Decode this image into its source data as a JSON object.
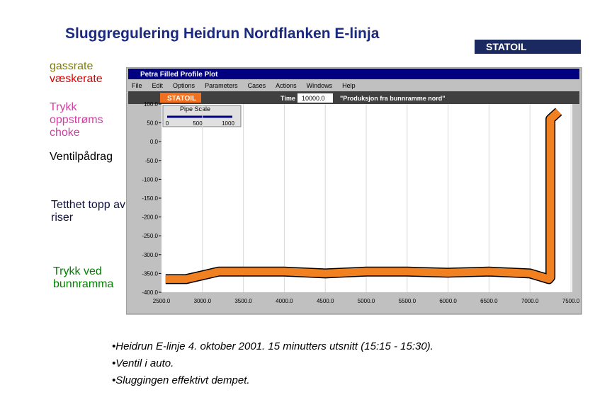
{
  "header": {
    "title": "Sluggregulering Heidrun Nordflanken E-linja",
    "logo": "STATOIL"
  },
  "legend": [
    {
      "label": "gassrate",
      "color": "#808000"
    },
    {
      "label": "væskerate",
      "color": "#e00000"
    },
    {
      "label": "Trykk oppstrøms choke",
      "color": "#d040a0"
    },
    {
      "label": "Ventilpådrag",
      "color": "#000000"
    },
    {
      "label": "Tetthet topp av riser",
      "color": "#101040"
    },
    {
      "label": "Trykk ved bunnramma",
      "color": "#008000"
    }
  ],
  "window": {
    "title": "Petra Filled Profile Plot",
    "menu": [
      "File",
      "Edit",
      "Options",
      "Parameters",
      "Cases",
      "Actions",
      "Windows",
      "Help"
    ],
    "toolbar": {
      "logo": "STATOIL",
      "time_label": "Time",
      "time_value": "10000.0",
      "case": "\"Produksjon fra bunnramme nord\""
    },
    "slider": {
      "label": "Pipe Scale",
      "ticks": [
        "0",
        "500",
        "1000"
      ]
    },
    "plot": {
      "xlim": [
        2500,
        7500
      ],
      "ylim": [
        -400,
        100
      ],
      "xticks": [
        {
          "value": 2500,
          "label": "2500.0"
        },
        {
          "value": 3000,
          "label": "3000.0"
        },
        {
          "value": 3500,
          "label": "3500.0"
        },
        {
          "value": 4000,
          "label": "4000.0"
        },
        {
          "value": 4500,
          "label": "4500.0"
        },
        {
          "value": 5000,
          "label": "5000.0"
        },
        {
          "value": 5500,
          "label": "5500.0"
        },
        {
          "value": 6000,
          "label": "6000.0"
        },
        {
          "value": 6500,
          "label": "6500.0"
        },
        {
          "value": 7000,
          "label": "7000.0"
        },
        {
          "value": 7500,
          "label": "7500.0"
        }
      ],
      "yticks": [
        {
          "value": 100,
          "label": "100.0"
        },
        {
          "value": 50,
          "label": "50.0"
        },
        {
          "value": 0,
          "label": "0.0"
        },
        {
          "value": -50,
          "label": "-50.0"
        },
        {
          "value": -100,
          "label": "-100.0"
        },
        {
          "value": -150,
          "label": "-150.0"
        },
        {
          "value": -200,
          "label": "-200.0"
        },
        {
          "value": -250,
          "label": "-250.0"
        },
        {
          "value": -300,
          "label": "-300.0"
        },
        {
          "value": -350,
          "label": "-350.0"
        },
        {
          "value": -400,
          "label": "-400.0"
        }
      ],
      "profile": {
        "color": "#f08020",
        "x": [
          2550,
          2800,
          3000,
          3200,
          3500,
          4000,
          4500,
          5000,
          5500,
          6000,
          6500,
          7000,
          7230,
          7250,
          7250,
          7350
        ],
        "y": [
          -365,
          -365,
          -355,
          -345,
          -345,
          -345,
          -350,
          -345,
          -345,
          -348,
          -345,
          -350,
          -365,
          -360,
          60,
          80
        ]
      }
    }
  },
  "bullets": [
    "•Heidrun E-linje 4. oktober 2001. 15 minutters utsnitt (15:15 - 15:30).",
    "•Ventil i auto.",
    "•Sluggingen effektivt dempet."
  ]
}
